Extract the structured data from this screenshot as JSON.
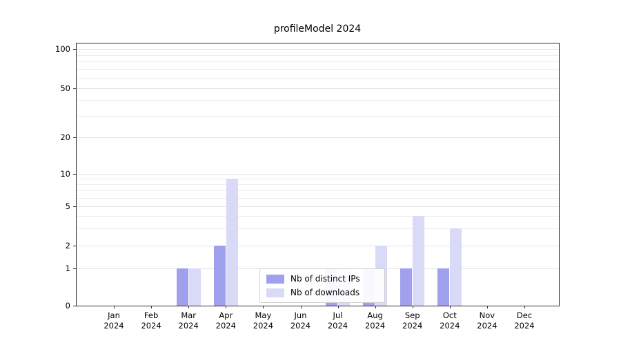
{
  "chart_data": {
    "type": "bar",
    "title": "profileModel 2024",
    "year_label": "2024",
    "categories": [
      "Jan",
      "Feb",
      "Mar",
      "Apr",
      "May",
      "Jun",
      "Jul",
      "Aug",
      "Sep",
      "Oct",
      "Nov",
      "Dec"
    ],
    "series": [
      {
        "name": "Nb of distinct IPs",
        "color": "#a0a0ef",
        "values": [
          0,
          0,
          1,
          2,
          0,
          0,
          1,
          1,
          1,
          1,
          0,
          0
        ]
      },
      {
        "name": "Nb of downloads",
        "color": "#d9d9f8",
        "values": [
          0,
          0,
          1,
          9,
          0,
          0,
          1,
          2,
          4,
          3,
          0,
          0
        ]
      }
    ],
    "scale": "symlog",
    "y_major_ticks": [
      0,
      1,
      2,
      5,
      10,
      20,
      50,
      100
    ],
    "y_minor_ticks": [
      3,
      4,
      6,
      7,
      8,
      9,
      30,
      40,
      60,
      70,
      80,
      90
    ],
    "ylim": [
      0,
      120
    ],
    "grid": true,
    "legend_position": "inside-bottom-center"
  },
  "colors": {
    "grid_major": "#e2e2e2",
    "grid_minor": "#ededed",
    "spine": "#2b2b2b",
    "background": "#ffffff"
  }
}
